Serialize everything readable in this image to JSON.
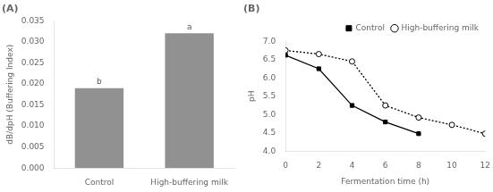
{
  "chart_data": [
    {
      "type": "bar",
      "title": "(A)",
      "categories": [
        "Control",
        "High-buffering milk"
      ],
      "values": [
        0.019,
        0.032
      ],
      "color": "#919191",
      "ylabel": "dB/dpH (Buffering Index)",
      "ylim": [
        0,
        0.035
      ],
      "yticks": [
        {
          "value": 0,
          "label": "0.000"
        },
        0.005,
        {
          "value": 0.01,
          "label": "0.010"
        },
        0.015,
        {
          "value": 0.02,
          "label": "0.020"
        },
        0.025,
        {
          "value": 0.03,
          "label": "0.030"
        },
        0.035
      ],
      "annotations": [
        {
          "category": "Control",
          "text": "b"
        },
        {
          "category": "High-buffering milk",
          "text": "a"
        }
      ],
      "grid": false
    },
    {
      "type": "line",
      "title": "(B)",
      "xlabel": "Fermentation time (h)",
      "ylabel": "pH",
      "x": [
        0,
        2,
        4,
        6,
        8,
        10,
        12
      ],
      "series": [
        {
          "name": "Control",
          "color": "#000000",
          "values": [
            6.62,
            6.25,
            5.25,
            4.8,
            4.48,
            null,
            null
          ],
          "marker": "square",
          "line_style": "solid"
        },
        {
          "name": "High-buffering milk",
          "color": "#000000",
          "values": [
            6.75,
            6.65,
            6.45,
            5.25,
            4.92,
            4.72,
            4.48
          ],
          "marker": "open_circle",
          "line_style": "dotted"
        }
      ],
      "xlim": [
        0,
        12
      ],
      "xticks": [
        0,
        2,
        4,
        6,
        8,
        10,
        12
      ],
      "ylim": [
        4.0,
        7.0
      ],
      "yticks": [
        {
          "value": 4.0,
          "label": "4.0"
        },
        4.5,
        {
          "value": 5.0,
          "label": "5.0"
        },
        5.5,
        {
          "value": 6.0,
          "label": "6.0"
        },
        6.5,
        {
          "value": 7.0,
          "label": "7.0"
        }
      ],
      "legend": "upper right",
      "grid": false
    }
  ]
}
